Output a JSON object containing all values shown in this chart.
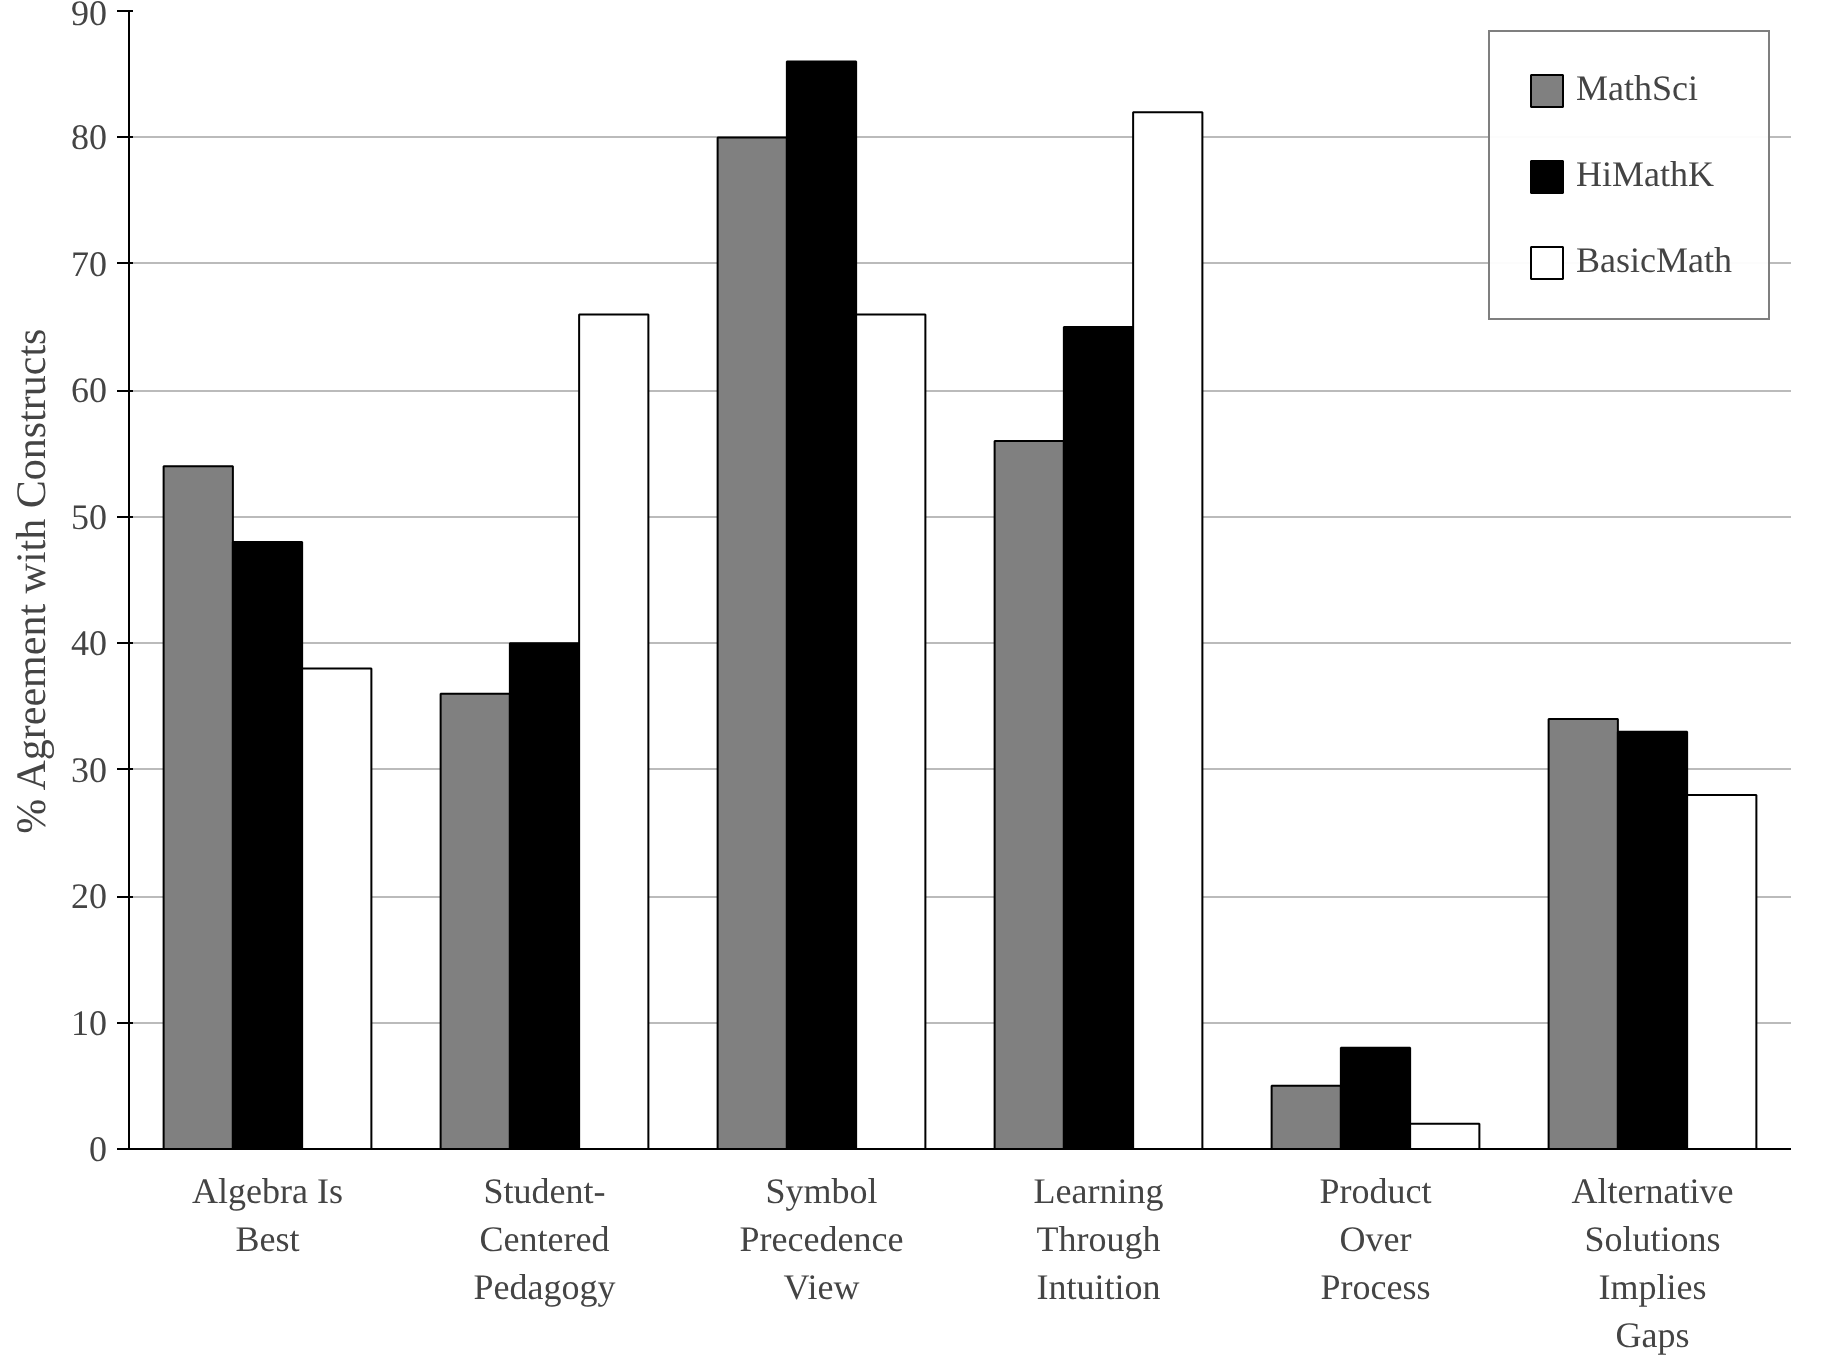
{
  "chart_data": {
    "type": "bar",
    "ylabel": "% Agreement with Constructs",
    "categories": [
      "Algebra Is\nBest",
      "Student-\nCentered\nPedagogy",
      "Symbol\nPrecedence\nView",
      "Learning\nThrough\nIntuition",
      "Product\nOver\nProcess",
      "Alternative\nSolutions\nImplies\nGaps"
    ],
    "series": [
      {
        "name": "MathSci",
        "color": "#808080",
        "values": [
          54,
          36,
          80,
          56,
          5,
          34
        ]
      },
      {
        "name": "HiMathK",
        "color": "#000000",
        "values": [
          48,
          40,
          86,
          65,
          8,
          33
        ]
      },
      {
        "name": "BasicMath",
        "color": "#ffffff",
        "values": [
          38,
          66,
          66,
          82,
          2,
          28
        ]
      }
    ],
    "ylim": [
      0,
      90
    ],
    "yticks": [
      0,
      10,
      20,
      30,
      40,
      50,
      60,
      70,
      80,
      90
    ],
    "grid": "y",
    "legend": "top right"
  }
}
